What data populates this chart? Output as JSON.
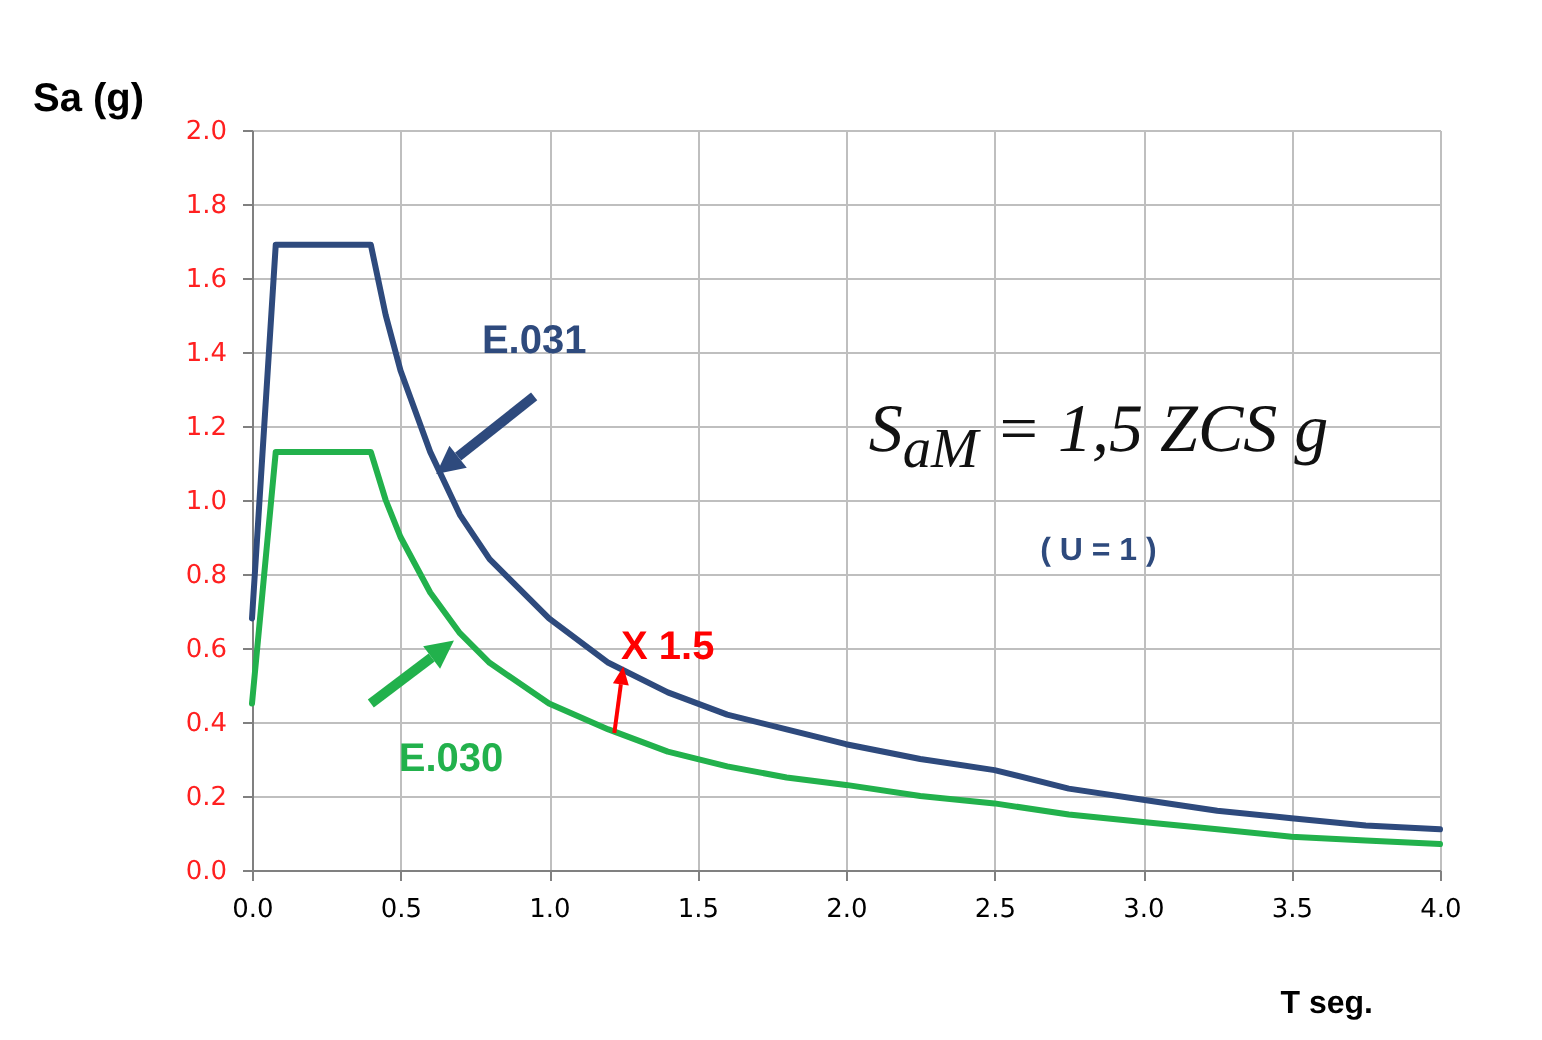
{
  "chart_data": {
    "type": "line",
    "xlabel": "T seg.",
    "ylabel": "Sa (g)",
    "x": [
      0,
      0.08,
      0.4,
      0.45,
      0.5,
      0.6,
      0.7,
      0.8,
      1.0,
      1.2,
      1.4,
      1.6,
      1.8,
      2.0,
      2.25,
      2.5,
      2.75,
      3.0,
      3.25,
      3.5,
      3.75,
      4.0
    ],
    "series": [
      {
        "name": "E.031",
        "color": "#2e4a7d",
        "values": [
          0.68,
          1.69,
          1.69,
          1.5,
          1.35,
          1.13,
          0.96,
          0.84,
          0.68,
          0.56,
          0.48,
          0.42,
          0.38,
          0.34,
          0.3,
          0.27,
          0.22,
          0.19,
          0.16,
          0.14,
          0.12,
          0.11
        ]
      },
      {
        "name": "E.030",
        "color": "#22b14c",
        "values": [
          0.45,
          1.13,
          1.13,
          1.0,
          0.9,
          0.75,
          0.64,
          0.56,
          0.45,
          0.38,
          0.32,
          0.28,
          0.25,
          0.23,
          0.2,
          0.18,
          0.15,
          0.13,
          0.11,
          0.09,
          0.08,
          0.07
        ]
      }
    ],
    "annotations": [
      "S$_{aM}$ = 1,5 ZCS g",
      "( U = 1 )",
      "X 1.5"
    ],
    "xlim": [
      0,
      4
    ],
    "xticks": [
      {
        "value": 0,
        "label": "0.0"
      },
      0.5,
      {
        "value": 1,
        "label": "1.0"
      },
      1.5,
      {
        "value": 2,
        "label": "2.0"
      },
      2.5,
      {
        "value": 3,
        "label": "3.0"
      },
      3.5,
      {
        "value": 4,
        "label": "4.0"
      }
    ],
    "ylim": [
      0,
      2
    ],
    "yticks": [
      {
        "value": 0,
        "label": "0.0"
      },
      0.2,
      0.4,
      0.6,
      0.8,
      {
        "value": 1,
        "label": "1.0"
      },
      1.2,
      1.4,
      1.6,
      1.8,
      {
        "value": 2,
        "label": "2.0"
      }
    ],
    "grid": true,
    "marker": "none",
    "line_style": "solid"
  }
}
